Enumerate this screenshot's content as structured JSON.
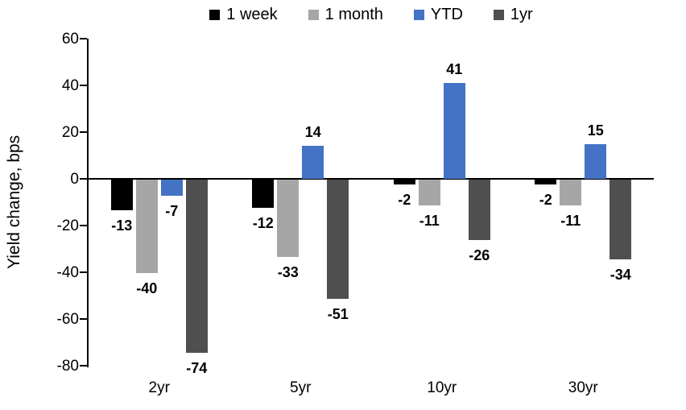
{
  "chart_data": {
    "type": "bar",
    "title": "",
    "xlabel": "",
    "ylabel": "Yield change, bps",
    "categories": [
      "2yr",
      "5yr",
      "10yr",
      "30yr"
    ],
    "series": [
      {
        "name": "1 week",
        "color": "#000000",
        "values": [
          -13,
          -12,
          -2,
          -2
        ]
      },
      {
        "name": "1 month",
        "color": "#a6a6a6",
        "values": [
          -40,
          -33,
          -11,
          -11
        ]
      },
      {
        "name": "YTD",
        "color": "#4472c4",
        "values": [
          -7,
          14,
          41,
          15
        ]
      },
      {
        "name": "1yr",
        "color": "#4f4f4f",
        "values": [
          -74,
          -51,
          -26,
          -34
        ]
      }
    ],
    "ylim": [
      -80,
      60
    ],
    "ytick_step": 20,
    "grid": false,
    "legend_position": "top",
    "data_labels": true,
    "axis_color": "#000000",
    "background_color": "#ffffff"
  }
}
